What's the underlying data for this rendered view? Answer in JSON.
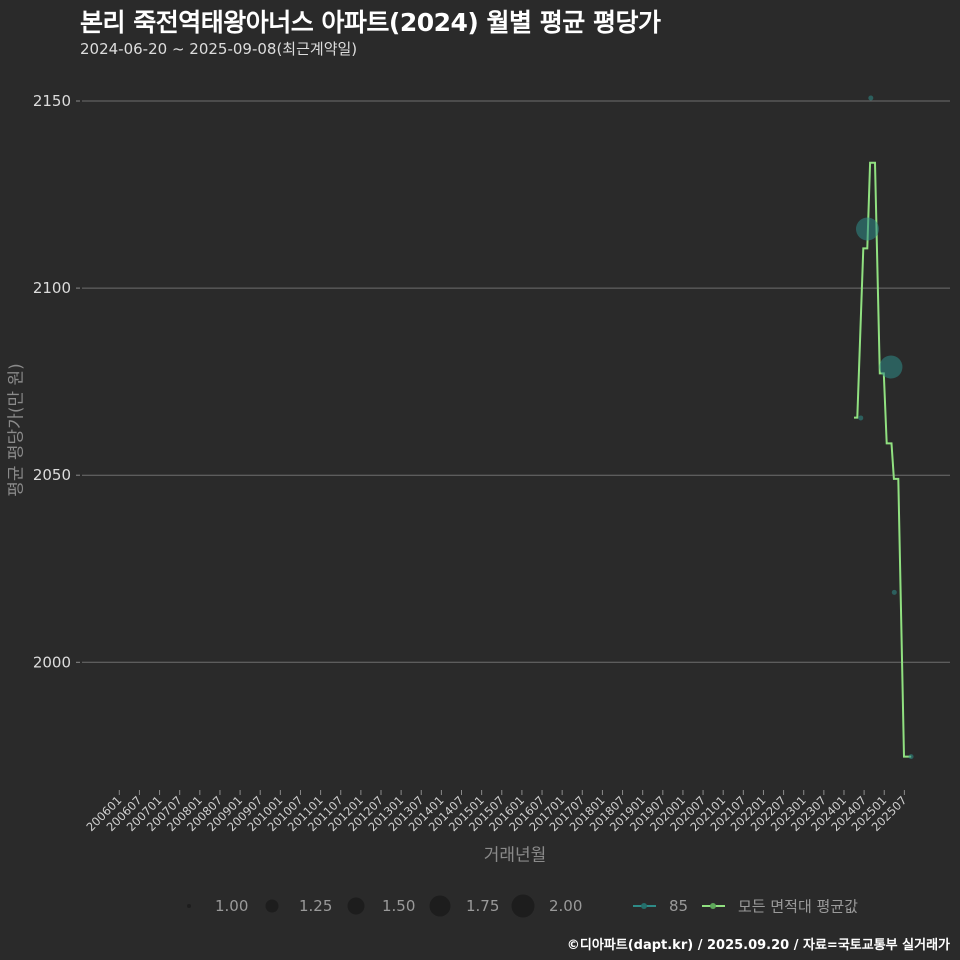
{
  "header": {
    "title": "본리 죽전역태왕아너스 아파트(2024) 월별 평균 평당가",
    "subtitle": "2024-06-20 ~ 2025-09-08(최근계약일)"
  },
  "axes": {
    "xlabel": "거래년월",
    "ylabel": "평균 평당가(만 원)"
  },
  "legend": {
    "size_items": [
      {
        "label": "1.00",
        "radius": 2
      },
      {
        "label": "1.25",
        "radius": 6.5
      },
      {
        "label": "1.50",
        "radius": 8.5
      },
      {
        "label": "1.75",
        "radius": 10.5
      },
      {
        "label": "2.00",
        "radius": 11.5
      }
    ],
    "line_items": [
      {
        "label": "85",
        "color": "#2e8b87"
      },
      {
        "label": "모든 면적대 평균값",
        "color": "#90e080"
      }
    ]
  },
  "footer": {
    "credit": "©디아파트(dapt.kr) / 2025.09.20 / 자료=국토교통부 실거래가"
  },
  "colors": {
    "background": "#2a2a2a",
    "grid": "#6e6e6e",
    "tick_text": "#d0d0d0",
    "axis_title": "#8a8a8a",
    "line": "#90e080",
    "points": "#2e8b87",
    "legend_circle": "#1d1d1d"
  },
  "chart_data": {
    "type": "line",
    "title": "본리 죽전역태왕아너스 아파트(2024) 월별 평균 평당가",
    "subtitle": "2024-06-20 ~ 2025-09-08(최근계약일)",
    "xlabel": "거래년월",
    "ylabel": "평균 평당가(만 원)",
    "ylim": [
      1967,
      2156
    ],
    "yticks": [
      2000,
      2050,
      2100,
      2150
    ],
    "grid": true,
    "legend_position": "bottom",
    "x_ticks": [
      "200601",
      "200607",
      "200701",
      "200707",
      "200801",
      "200807",
      "200901",
      "200907",
      "201001",
      "201007",
      "201101",
      "201107",
      "201201",
      "201207",
      "201301",
      "201307",
      "201401",
      "201407",
      "201501",
      "201507",
      "201601",
      "201607",
      "201701",
      "201707",
      "201801",
      "201807",
      "201901",
      "201907",
      "202001",
      "202007",
      "202101",
      "202107",
      "202201",
      "202207",
      "202301",
      "202307",
      "202401",
      "202407",
      "202501",
      "202507"
    ],
    "series": [
      {
        "name": "85",
        "type": "scatter",
        "color": "#2e8b87",
        "points": [
          {
            "x": "202406",
            "y": 2065.3,
            "size": 1
          },
          {
            "x": "202408",
            "y": 2115.8,
            "size": 2
          },
          {
            "x": "202409",
            "y": 2150.8,
            "size": 1
          },
          {
            "x": "202503",
            "y": 2078.9,
            "size": 2
          },
          {
            "x": "202504",
            "y": 2018.7,
            "size": 1
          },
          {
            "x": "202509",
            "y": 1974.8,
            "size": 1
          }
        ]
      },
      {
        "name": "모든 면적대 평균값",
        "type": "line",
        "color": "#90e080",
        "points": [
          {
            "x": 2024.25,
            "y": 2065.4
          },
          {
            "x": 2024.33,
            "y": 2065.4
          },
          {
            "x": 2024.48,
            "y": 2110.6
          },
          {
            "x": 2024.58,
            "y": 2110.6
          },
          {
            "x": 2024.65,
            "y": 2133.5
          },
          {
            "x": 2024.77,
            "y": 2133.5
          },
          {
            "x": 2024.89,
            "y": 2077.2
          },
          {
            "x": 2024.99,
            "y": 2077.2
          },
          {
            "x": 2025.06,
            "y": 2058.5
          },
          {
            "x": 2025.18,
            "y": 2058.5
          },
          {
            "x": 2025.24,
            "y": 2049.0
          },
          {
            "x": 2025.35,
            "y": 2049.0
          },
          {
            "x": 2025.49,
            "y": 1974.8
          },
          {
            "x": 2025.67,
            "y": 1974.8
          }
        ]
      }
    ]
  }
}
